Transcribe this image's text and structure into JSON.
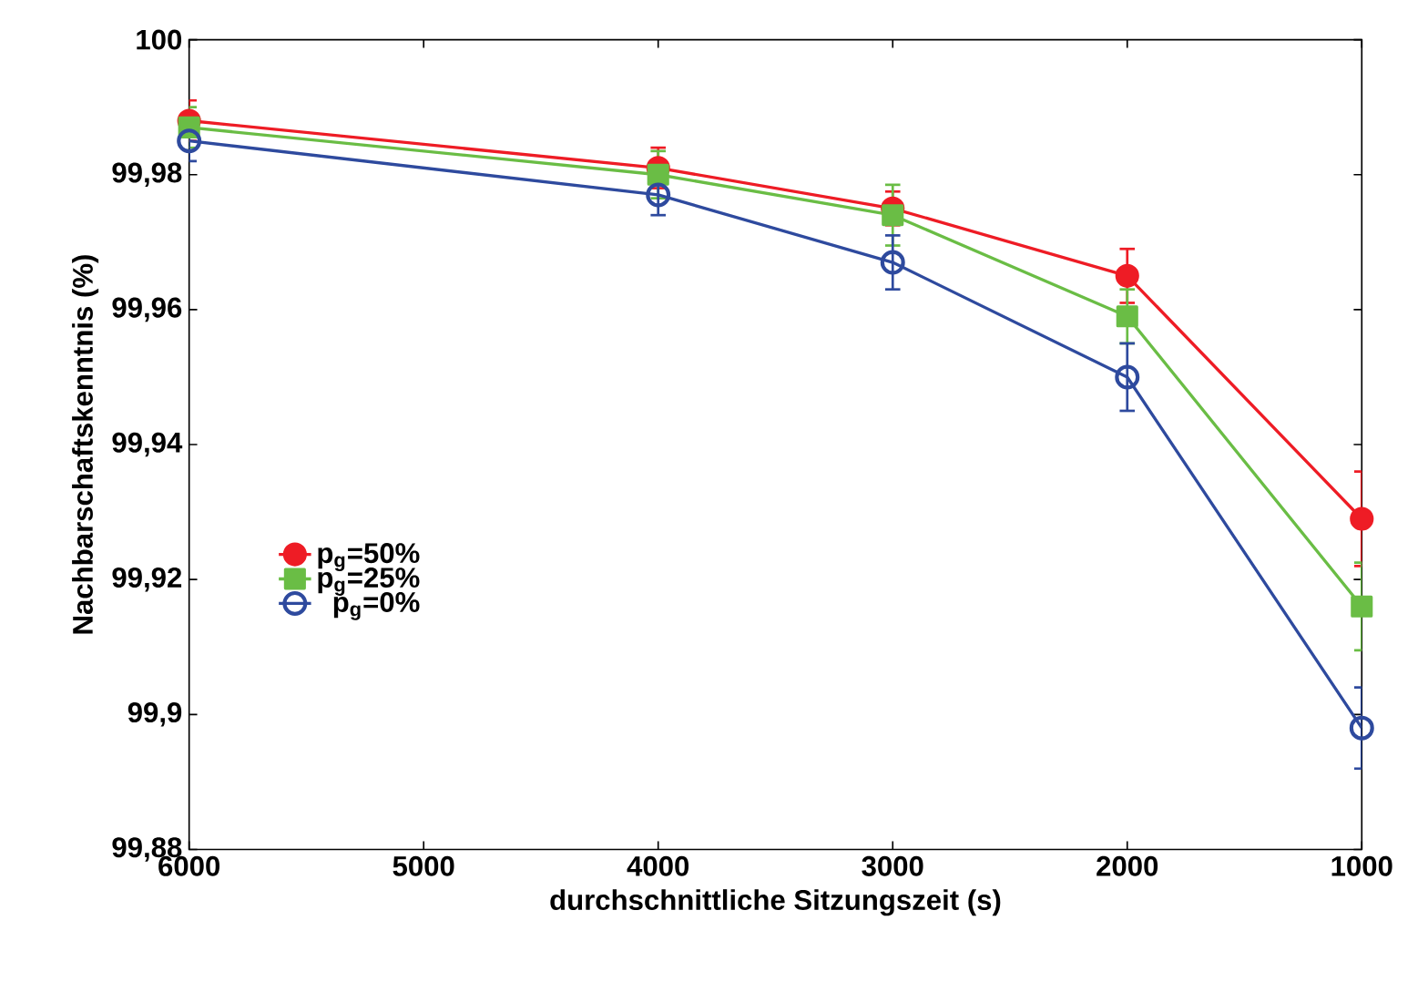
{
  "chart_data": {
    "type": "line",
    "xlabel": "durchschnittliche Sitzungszeit (s)",
    "ylabel": "Nachbarschaftskenntnis (%)",
    "x": [
      6000,
      4000,
      3000,
      2000,
      1000
    ],
    "xlim": [
      6000,
      1000
    ],
    "xticks": [
      6000,
      5000,
      4000,
      3000,
      2000,
      1000
    ],
    "ylim": [
      99.88,
      100
    ],
    "yticks": [
      {
        "value": 99.88,
        "label": "99,88"
      },
      {
        "value": 99.9,
        "label": "99,9"
      },
      {
        "value": 99.92,
        "label": "99,92"
      },
      {
        "value": 99.94,
        "label": "99,94"
      },
      {
        "value": 99.96,
        "label": "99,96"
      },
      {
        "value": 99.98,
        "label": "99,98"
      },
      {
        "value": 100,
        "label": "100"
      }
    ],
    "grid": false,
    "legend": "bottom left",
    "line_style": "solid",
    "series": [
      {
        "name": "p$_{g}$=50%",
        "color": "#ee1c25",
        "marker": "circle",
        "values": [
          99.988,
          99.981,
          99.975,
          99.965,
          99.929
        ],
        "errors": [
          0.003,
          0.003,
          0.0025,
          0.004,
          0.007
        ]
      },
      {
        "name": "p$_{g}$=25%",
        "color": "#6abd45",
        "marker": "square",
        "values": [
          99.987,
          99.98,
          99.974,
          99.959,
          99.916
        ],
        "errors": [
          0.003,
          0.0035,
          0.0045,
          0.004,
          0.0065
        ]
      },
      {
        "name": "p$_{g}$=0%",
        "color": "#2e4a9e",
        "marker": "open circle",
        "values": [
          99.985,
          99.977,
          99.967,
          99.95,
          99.898
        ],
        "errors": [
          0.003,
          0.003,
          0.004,
          0.005,
          0.006
        ]
      }
    ]
  }
}
